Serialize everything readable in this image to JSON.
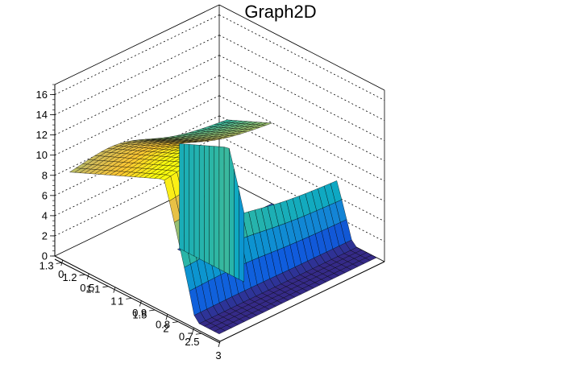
{
  "chart_data": {
    "type": "surface3d",
    "title": "Graph2D",
    "x_ticks": [
      "0",
      "0.5",
      "1",
      "1.5",
      "2",
      "2.5",
      "3"
    ],
    "y_ticks": [
      "0.7",
      "0.8",
      "0.9",
      "1",
      "1.1",
      "1.2",
      "1.3"
    ],
    "z_ticks": [
      "0",
      "2",
      "4",
      "6",
      "8",
      "10",
      "12",
      "14",
      "16"
    ],
    "xlim": [
      -0.15,
      3
    ],
    "ylim": [
      0.62,
      1.33
    ],
    "zlim": [
      0,
      17
    ],
    "colormap": "viridis-like",
    "palette": [
      "#352a87",
      "#0f5cdd",
      "#1481d6",
      "#06a4ca",
      "#2eb7a4",
      "#87bf77",
      "#d1bb59",
      "#fec832",
      "#f9fb0e"
    ],
    "surface_samples": [
      {
        "x": 0.0,
        "y": 1.3,
        "z": 7.8
      },
      {
        "x": 0.0,
        "y": 0.9,
        "z": 6.2
      },
      {
        "x": 0.5,
        "y": 1.3,
        "z": 9.0
      },
      {
        "x": 0.5,
        "y": 0.9,
        "z": 7.3
      },
      {
        "x": 1.0,
        "y": 1.3,
        "z": 10.5
      },
      {
        "x": 1.0,
        "y": 0.9,
        "z": 9.0
      },
      {
        "x": 1.5,
        "y": 1.3,
        "z": 11.5
      },
      {
        "x": 1.5,
        "y": 0.9,
        "z": 10.0
      },
      {
        "x": 1.8,
        "y": 1.1,
        "z": 11.5
      },
      {
        "x": 2.1,
        "y": 1.1,
        "z": 4.0
      },
      {
        "x": 2.4,
        "y": 1.1,
        "z": 0.0
      }
    ],
    "grid": true
  }
}
